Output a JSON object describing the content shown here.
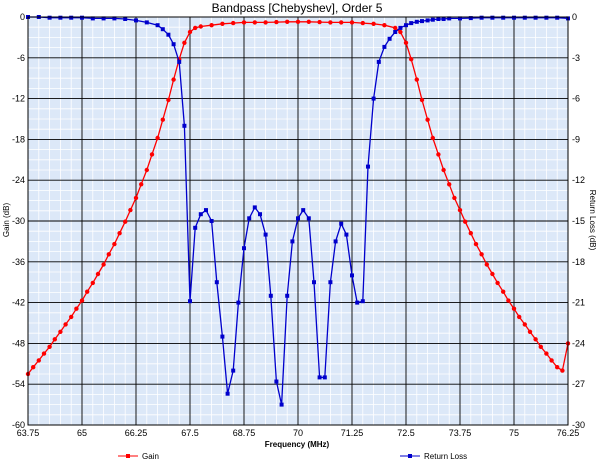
{
  "chart_data": {
    "type": "line",
    "title": "Bandpass [Chebyshev], Order 5",
    "xlabel": "Frequency (MHz)",
    "ylabel_left": "Gain (dB)",
    "ylabel_right": "Return Loss (dB)",
    "xlim": [
      63.75,
      76.25
    ],
    "ylim_left": [
      -60,
      0
    ],
    "ylim_right": [
      -30,
      0
    ],
    "x_ticks": [
      63.75,
      65,
      66.25,
      67.5,
      68.75,
      70,
      71.25,
      72.5,
      73.75,
      75,
      76.25
    ],
    "x_tick_labels": [
      "63.75",
      "65",
      "66.25",
      "67.5",
      "68.75",
      "70",
      "71.25",
      "72.5",
      "73.75",
      "75",
      "76.25"
    ],
    "y_left_ticks": [
      0,
      -6,
      -12,
      -18,
      -24,
      -30,
      -36,
      -42,
      -48,
      -54,
      -60
    ],
    "y_left_tick_labels": [
      "0",
      "-6",
      "-12",
      "-18",
      "-24",
      "-30",
      "-36",
      "-42",
      "-48",
      "-54",
      "-60"
    ],
    "y_right_ticks": [
      0,
      -3,
      -6,
      -9,
      -12,
      -15,
      -18,
      -21,
      -24,
      -27,
      -30
    ],
    "y_right_tick_labels": [
      "0",
      "-3",
      "-6",
      "-9",
      "-12",
      "-15",
      "-18",
      "-21",
      "-24",
      "-27",
      "-30"
    ],
    "grid": true,
    "legend_placement": "bottom",
    "colors": {
      "gain": "#ff0000",
      "return_loss": "#0000cc",
      "plot_bg": "#dce8f8"
    },
    "series": [
      {
        "name": "Gain",
        "axis": "left",
        "color": "#ff0000",
        "x": [
          63.75,
          63.87,
          64.0,
          64.12,
          64.25,
          64.37,
          64.5,
          64.62,
          64.75,
          64.87,
          65.0,
          65.12,
          65.25,
          65.37,
          65.5,
          65.62,
          65.75,
          65.87,
          66.0,
          66.12,
          66.25,
          66.37,
          66.5,
          66.62,
          66.75,
          66.87,
          67.0,
          67.12,
          67.25,
          67.37,
          67.5,
          67.62,
          67.75,
          68.0,
          68.25,
          68.5,
          68.75,
          69.0,
          69.25,
          69.5,
          69.75,
          70.0,
          70.25,
          70.5,
          70.75,
          71.0,
          71.25,
          71.5,
          71.75,
          72.0,
          72.25,
          72.37,
          72.5,
          72.62,
          72.75,
          72.87,
          73.0,
          73.12,
          73.25,
          73.37,
          73.5,
          73.62,
          73.75,
          73.87,
          74.0,
          74.12,
          74.25,
          74.37,
          74.5,
          74.62,
          74.75,
          74.87,
          75.0,
          75.12,
          75.25,
          75.37,
          75.5,
          75.62,
          75.75,
          75.87,
          76.0,
          76.12,
          76.25
        ],
        "values": [
          -52.5,
          -51.5,
          -50.5,
          -49.5,
          -48.5,
          -47.4,
          -46.3,
          -45.2,
          -44.1,
          -42.9,
          -41.7,
          -40.4,
          -39.1,
          -37.8,
          -36.4,
          -34.9,
          -33.4,
          -31.8,
          -30.1,
          -28.4,
          -26.6,
          -24.6,
          -22.5,
          -20.2,
          -17.8,
          -15.1,
          -12.2,
          -9.2,
          -6.2,
          -3.8,
          -2.2,
          -1.6,
          -1.4,
          -1.2,
          -1.0,
          -0.9,
          -0.8,
          -0.8,
          -0.8,
          -0.75,
          -0.7,
          -0.7,
          -0.7,
          -0.75,
          -0.8,
          -0.8,
          -0.8,
          -0.9,
          -1.0,
          -1.2,
          -1.6,
          -2.2,
          -3.8,
          -6.2,
          -9.2,
          -12.2,
          -15.1,
          -17.8,
          -20.2,
          -22.5,
          -24.6,
          -26.6,
          -28.4,
          -30.1,
          -31.8,
          -33.4,
          -34.9,
          -36.4,
          -37.8,
          -39.1,
          -40.4,
          -41.7,
          -42.9,
          -44.1,
          -45.2,
          -46.3,
          -47.4,
          -48.5,
          -49.5,
          -50.5,
          -51.5,
          -52.0,
          -48.0
        ]
      },
      {
        "name": "Return Loss",
        "axis": "right",
        "color": "#0000cc",
        "x": [
          63.75,
          64.0,
          64.25,
          64.5,
          64.75,
          65.0,
          65.25,
          65.5,
          65.75,
          66.0,
          66.25,
          66.5,
          66.75,
          66.87,
          67.0,
          67.12,
          67.25,
          67.37,
          67.5,
          67.62,
          67.75,
          67.87,
          68.0,
          68.12,
          68.25,
          68.37,
          68.5,
          68.62,
          68.75,
          68.87,
          69.0,
          69.12,
          69.25,
          69.37,
          69.5,
          69.62,
          69.75,
          69.87,
          70.0,
          70.12,
          70.25,
          70.37,
          70.5,
          70.62,
          70.75,
          70.87,
          71.0,
          71.12,
          71.25,
          71.37,
          71.5,
          71.62,
          71.75,
          71.87,
          72.0,
          72.12,
          72.25,
          72.37,
          72.5,
          72.62,
          72.75,
          72.87,
          73.0,
          73.12,
          73.25,
          73.37,
          73.5,
          73.75,
          74.0,
          74.25,
          74.5,
          74.75,
          75.0,
          75.25,
          75.5,
          75.75,
          76.0,
          76.25
        ],
        "values": [
          0,
          0,
          -0.05,
          -0.05,
          -0.05,
          -0.05,
          -0.1,
          -0.1,
          -0.1,
          -0.15,
          -0.25,
          -0.4,
          -0.6,
          -0.9,
          -1.3,
          -2.0,
          -3.3,
          -8.0,
          -20.9,
          -15.5,
          -14.5,
          -14.2,
          -15.0,
          -19.5,
          -23.5,
          -27.7,
          -26.0,
          -21.0,
          -17.0,
          -14.8,
          -14.0,
          -14.5,
          -16.0,
          -20.5,
          -26.8,
          -28.5,
          -20.5,
          -16.5,
          -14.8,
          -14.2,
          -14.8,
          -19.5,
          -26.5,
          -26.5,
          -19.5,
          -16.5,
          -15.2,
          -16.0,
          -19.0,
          -21.0,
          -20.9,
          -11.0,
          -6.0,
          -3.3,
          -2.2,
          -1.6,
          -1.1,
          -0.8,
          -0.6,
          -0.45,
          -0.35,
          -0.3,
          -0.25,
          -0.2,
          -0.15,
          -0.15,
          -0.1,
          -0.1,
          -0.08,
          -0.05,
          -0.05,
          -0.05,
          -0.05,
          -0.05,
          -0.05,
          -0.05,
          -0.05,
          -0.1
        ]
      }
    ]
  }
}
